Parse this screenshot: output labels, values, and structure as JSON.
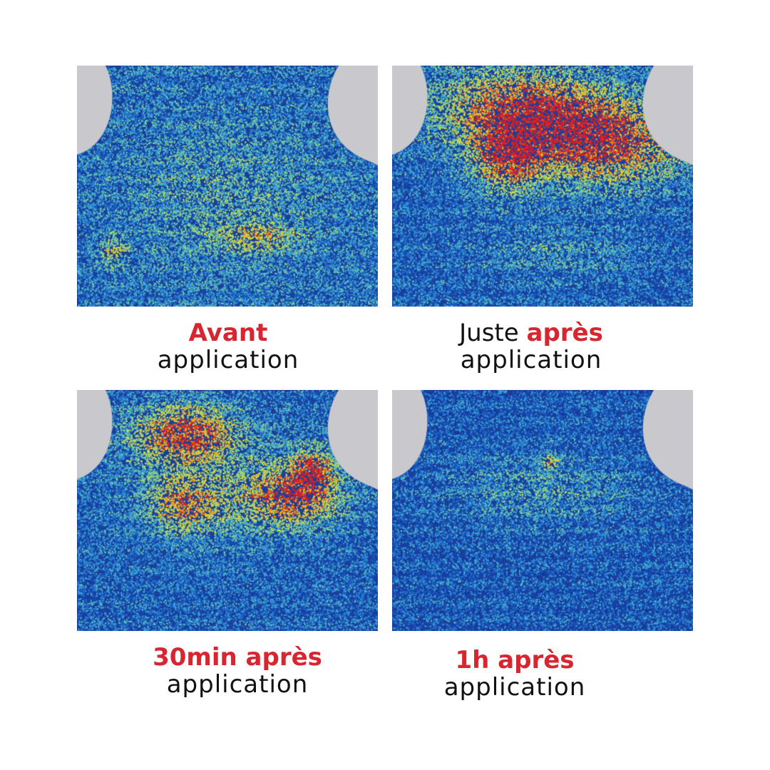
{
  "colors": {
    "accent": "#d7262f",
    "text": "#111111",
    "background": "#ffffff"
  },
  "panels": [
    {
      "title_plain": "",
      "title_accent": "Avant",
      "subtitle": "application"
    },
    {
      "title_plain": "Juste ",
      "title_accent": "après",
      "subtitle": "application"
    },
    {
      "title_plain": "",
      "title_accent": "30min après",
      "subtitle": "application"
    },
    {
      "title_plain": "",
      "title_accent": "1h après",
      "subtitle": "application"
    }
  ]
}
